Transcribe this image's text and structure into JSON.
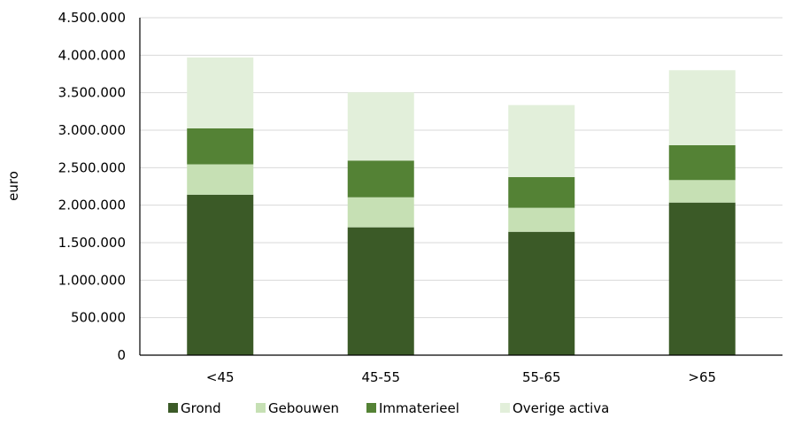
{
  "chart_data": {
    "type": "bar",
    "stacked": true,
    "title": "",
    "xlabel": "",
    "ylabel": "euro",
    "categories": [
      "<45",
      "45-55",
      "55-65",
      ">65"
    ],
    "series": [
      {
        "name": "Grond",
        "values": [
          2140000,
          1705000,
          1645000,
          2035000
        ],
        "color": "#3b5a27"
      },
      {
        "name": "Gebouwen",
        "values": [
          405000,
          400000,
          320000,
          300000
        ],
        "color": "#c6e0b4"
      },
      {
        "name": "Immaterieel",
        "values": [
          480000,
          490000,
          410000,
          465000
        ],
        "color": "#548235"
      },
      {
        "name": "Overige activa",
        "values": [
          945000,
          910000,
          960000,
          1000000
        ],
        "color": "#e2efda"
      }
    ],
    "ylim": [
      0,
      4500000
    ],
    "yticks": [
      0,
      500000,
      1000000,
      1500000,
      2000000,
      2500000,
      3000000,
      3500000,
      4000000,
      4500000
    ],
    "ytick_labels": [
      "0",
      "500.000",
      "1.000.000",
      "1.500.000",
      "2.000.000",
      "2.500.000",
      "3.000.000",
      "3.500.000",
      "4.000.000",
      "4.500.000"
    ],
    "grid": true,
    "legend_position": "bottom"
  }
}
